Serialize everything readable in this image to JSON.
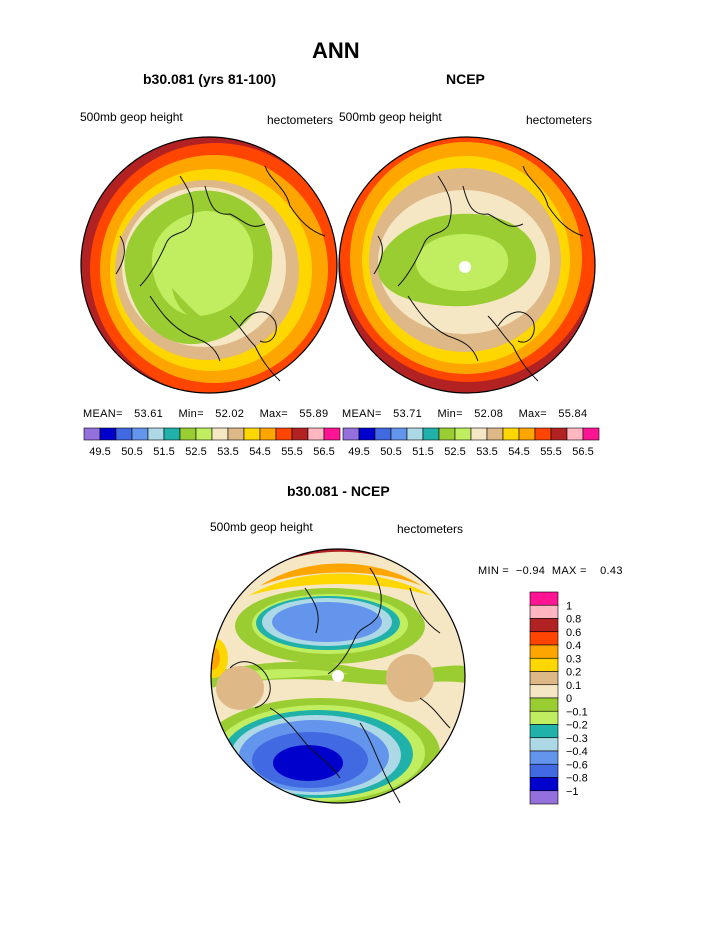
{
  "page_title": "ANN",
  "panels": {
    "left": {
      "title": "b30.081 (yrs 81-100)",
      "field": "500mb geop height",
      "units": "hectometers",
      "stats": {
        "mean_label": "MEAN=",
        "mean": "53.61",
        "min_label": "Min=",
        "min": "52.02",
        "max_label": "Max=",
        "max": "55.89"
      }
    },
    "right": {
      "title": "NCEP",
      "field": "500mb geop height",
      "units": "hectometers",
      "stats": {
        "mean_label": "MEAN=",
        "mean": "53.71",
        "min_label": "Min=",
        "min": "52.08",
        "max_label": "Max=",
        "max": "55.84"
      }
    },
    "diff": {
      "title": "b30.081 - NCEP",
      "field": "500mb geop height",
      "units": "hectometers",
      "minmax": "MIN =  −0.94  MAX =    0.43"
    }
  },
  "colorbar": {
    "colors": [
      "#9370db",
      "#0000cd",
      "#4169e1",
      "#6495ed",
      "#add8e6",
      "#20b2aa",
      "#9acd32",
      "#c0ee60",
      "#f5e6c4",
      "#deb887",
      "#ffd700",
      "#ffa500",
      "#ff4500",
      "#b22222",
      "#ffb6c1",
      "#ff1493"
    ],
    "labels": [
      "49.5",
      "50.5",
      "51.5",
      "52.5",
      "53.5",
      "54.5",
      "55.5",
      "56.5"
    ]
  },
  "diff_colorbar": {
    "colors": [
      "#ff1493",
      "#ffb6c1",
      "#b22222",
      "#ff4500",
      "#ffa500",
      "#ffd700",
      "#deb887",
      "#f5e6c4",
      "#9acd32",
      "#c0ee60",
      "#20b2aa",
      "#add8e6",
      "#6495ed",
      "#4169e1",
      "#0000cd",
      "#9370db"
    ],
    "labels": [
      "1",
      "0.8",
      "0.6",
      "0.4",
      "0.3",
      "0.2",
      "0.1",
      "0",
      "−0.1",
      "−0.2",
      "−0.3",
      "−0.4",
      "−0.6",
      "−0.8",
      "−1"
    ]
  }
}
